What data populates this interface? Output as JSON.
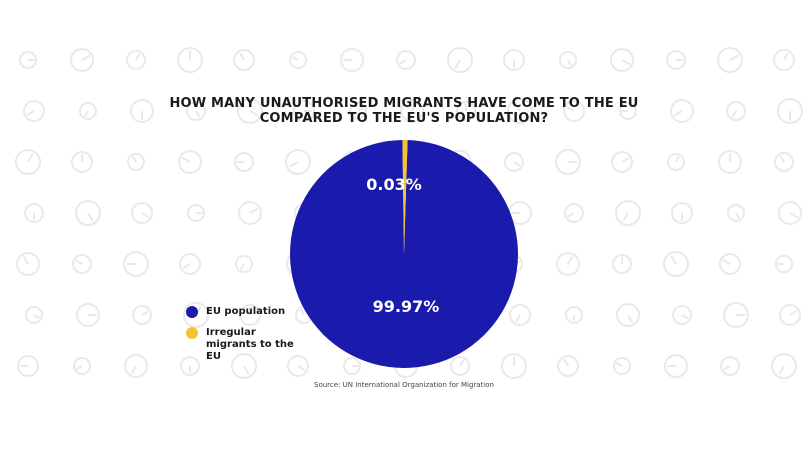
{
  "header": {
    "title_line_1": "HOW MANY UNAUTHORISED MIGRANTS HAVE COME TO THE EU",
    "title_line_2": "COMPARED TO THE EU'S POPULATION?"
  },
  "chart_data": {
    "type": "pie",
    "title": "HOW MANY UNAUTHORISED MIGRANTS HAVE COME TO THE EU COMPARED TO THE EU'S POPULATION?",
    "categories": [
      "EU population",
      "Irregular migrants to the EU"
    ],
    "values": [
      99.97,
      0.03
    ],
    "data_labels": [
      "99.97%",
      "0.03%"
    ],
    "colors": [
      "#1a1aad",
      "#f4c430"
    ],
    "legend_position": "left"
  },
  "legend": {
    "items": [
      {
        "label": "EU population",
        "color": "#1a1aad"
      },
      {
        "label": "Irregular migrants to the EU",
        "color": "#f4c430"
      }
    ]
  },
  "footer": {
    "source": "Source: UN International Organization for Migration"
  },
  "theme": {
    "background": "#ffffff",
    "pattern_icon": "clock-icon"
  }
}
